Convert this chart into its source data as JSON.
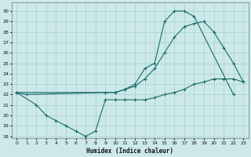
{
  "xlabel": "Humidex (Indice chaleur)",
  "bg_color": "#cce8e8",
  "grid_color": "#aad4d4",
  "line_color": "#1a6b6b",
  "xlim": [
    -0.5,
    23.5
  ],
  "ylim": [
    17.8,
    30.8
  ],
  "yticks": [
    18,
    19,
    20,
    21,
    22,
    23,
    24,
    25,
    26,
    27,
    28,
    29,
    30
  ],
  "xticks": [
    0,
    1,
    2,
    3,
    4,
    5,
    6,
    7,
    8,
    9,
    10,
    11,
    12,
    13,
    14,
    15,
    16,
    17,
    18,
    19,
    20,
    21,
    22,
    23
  ],
  "line1_x": [
    0,
    1,
    9,
    10,
    11,
    12,
    13,
    14,
    15,
    16,
    17,
    18,
    22
  ],
  "line1_y": [
    22.2,
    22.0,
    22.2,
    22.2,
    22.5,
    23.0,
    24.5,
    25.0,
    29.0,
    30.0,
    30.0,
    29.5,
    22.0
  ],
  "line2_x": [
    0,
    10,
    11,
    12,
    13,
    14,
    15,
    16,
    17,
    18,
    19,
    20,
    21,
    22,
    23
  ],
  "line2_y": [
    22.2,
    22.2,
    22.5,
    22.8,
    23.5,
    24.5,
    26.0,
    27.5,
    28.5,
    28.8,
    29.0,
    28.0,
    26.5,
    25.0,
    23.2
  ],
  "line3_x": [
    0,
    2,
    3,
    4,
    5,
    6,
    7,
    8,
    9,
    10,
    11,
    12,
    13,
    14,
    15,
    16,
    17,
    18,
    19,
    20,
    21,
    22,
    23
  ],
  "line3_y": [
    22.2,
    21.0,
    20.0,
    19.5,
    19.0,
    18.5,
    18.0,
    18.5,
    21.5,
    21.5,
    21.5,
    21.5,
    21.5,
    21.7,
    22.0,
    22.2,
    22.5,
    23.0,
    23.2,
    23.5,
    23.5,
    23.5,
    23.2
  ]
}
